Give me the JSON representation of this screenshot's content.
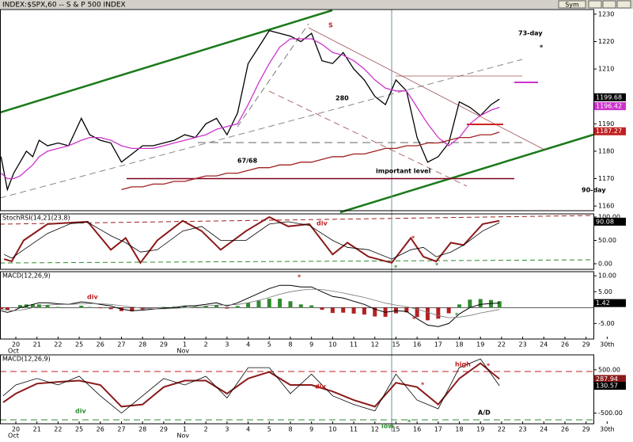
{
  "header": {
    "title": "INDEX:$SPX,60 -- S & P 500 INDEX",
    "sym": "Sym"
  },
  "chart_data": [
    {
      "type": "line",
      "xlim": [
        -0.75,
        27.35
      ],
      "ylim": [
        1158.3,
        1231.7
      ],
      "yticks": [
        1160,
        1170,
        1180,
        1190,
        1200,
        1210,
        1220,
        1230
      ],
      "x": [
        -0.7,
        -0.4,
        -0.1,
        0.2,
        0.5,
        0.8,
        1.1,
        1.5,
        2,
        2.5,
        3.1,
        3.5,
        4,
        4.5,
        5,
        5.5,
        6,
        6.5,
        7,
        7.5,
        8,
        8.5,
        9,
        9.5,
        10,
        10.5,
        11,
        11.5,
        12,
        12.5,
        13,
        13.5,
        14,
        14.5,
        15,
        15.5,
        16,
        16.5,
        17,
        17.5,
        18,
        18.5,
        19,
        19.5,
        20,
        20.5,
        21,
        21.5,
        22,
        22.5,
        22.9
      ],
      "series": [
        {
          "color": "#000000",
          "values": [
            1178,
            1166,
            1172,
            1176,
            1180,
            1178,
            1184,
            1182,
            1183,
            1182,
            1192,
            1186,
            1184,
            1183,
            1176,
            1179,
            1182,
            1182,
            1183,
            1184,
            1186,
            1185,
            1190,
            1192,
            1186,
            1194,
            1212,
            1218,
            1224,
            1223,
            1222,
            1220,
            1223,
            1213,
            1212,
            1216,
            1210,
            1206,
            1200,
            1197,
            1206,
            1202,
            1185,
            1176,
            1178,
            1183,
            1198,
            1196,
            1193,
            1197,
            1199
          ]
        },
        {
          "color": "#cc33cc",
          "values": [
            1172,
            1170,
            1170,
            1171,
            1173,
            1175,
            1178,
            1180,
            1181,
            1182,
            1184,
            1185,
            1185,
            1184,
            1182,
            1181,
            1181,
            1181,
            1182,
            1183,
            1184,
            1185,
            1186,
            1188,
            1189,
            1190,
            1197,
            1205,
            1212,
            1218,
            1221,
            1221,
            1221,
            1219,
            1216,
            1215,
            1213,
            1210,
            1206,
            1203,
            1202,
            1202,
            1196,
            1190,
            1185,
            1182,
            1185,
            1190,
            1193,
            1195,
            1196
          ]
        },
        {
          "color": "#a02020",
          "values": [
            null,
            null,
            null,
            null,
            null,
            null,
            null,
            null,
            null,
            null,
            null,
            null,
            null,
            null,
            1166,
            1167,
            1167,
            1168,
            1168,
            1169,
            1169,
            1170,
            1171,
            1171,
            1172,
            1172,
            1173,
            1174,
            1174,
            1175,
            1175,
            1176,
            1176,
            1177,
            1178,
            1178,
            1179,
            1179,
            1180,
            1181,
            1181,
            1182,
            1182,
            1183,
            1183,
            1184,
            1185,
            1185,
            1186,
            1186,
            1187
          ]
        }
      ],
      "hlines": [
        {
          "value": 1170,
          "color": "#800020"
        }
      ],
      "tags": [
        {
          "value": 1199.68,
          "color": "#000000"
        },
        {
          "value": 1196.42,
          "color": "#cc33cc"
        },
        {
          "value": 1187.27,
          "color": "#c02020"
        }
      ],
      "annotations": [
        "S",
        "280",
        "67/68",
        "important level",
        "73-day",
        "*",
        "90-day"
      ]
    },
    {
      "type": "line",
      "title": "StochRSI(14,21(23,8)",
      "xlim": [
        -0.75,
        27.35
      ],
      "ylim": [
        -11.9,
        106.8
      ],
      "yticks": [
        {
          "value": 0,
          "label": "0.00"
        },
        {
          "value": 50,
          "label": "50.00"
        },
        {
          "value": 100,
          "label": "100.00"
        }
      ],
      "x": [
        -0.56,
        -0.19,
        0.37,
        1.5,
        2.6,
        3.4,
        4.5,
        5.2,
        5.9,
        6.7,
        7.9,
        8.8,
        9.7,
        10.9,
        12,
        12.9,
        13.9,
        15,
        15.7,
        16.7,
        17.8,
        18.7,
        19.3,
        19.9,
        20.6,
        21.2,
        22.1,
        22.9
      ],
      "series": [
        {
          "color": "#8b1a1a",
          "width": 2,
          "values": [
            10,
            5,
            50,
            85,
            88,
            90,
            30,
            55,
            2,
            50,
            92,
            70,
            30,
            70,
            100,
            80,
            85,
            20,
            45,
            15,
            2,
            55,
            15,
            5,
            45,
            40,
            85,
            92
          ]
        },
        {
          "color": "#000000",
          "width": 0.8,
          "values": [
            20,
            12,
            30,
            65,
            86,
            89,
            60,
            45,
            25,
            30,
            70,
            80,
            50,
            50,
            85,
            90,
            82,
            50,
            35,
            30,
            10,
            30,
            35,
            15,
            25,
            40,
            70,
            88
          ]
        }
      ],
      "tags": [
        {
          "value": 90.08,
          "color": "#000000"
        }
      ],
      "annotations": [
        "div",
        "*",
        "*",
        "*"
      ]
    },
    {
      "type": "line",
      "title": "MACD(12,26,9)",
      "xlim": [
        -0.75,
        27.35
      ],
      "ylim": [
        -9.9,
        11.3
      ],
      "yticks": [
        {
          "value": -5,
          "label": "-5.00"
        },
        {
          "value": 5,
          "label": "5.00"
        },
        {
          "value": 10,
          "label": "10.00"
        }
      ],
      "x": [
        -0.7,
        -0.4,
        -0.1,
        0.2,
        0.5,
        0.8,
        1.1,
        1.5,
        2,
        2.5,
        3.1,
        3.5,
        4,
        4.5,
        5,
        5.5,
        6,
        6.5,
        7,
        7.5,
        8,
        8.5,
        9,
        9.5,
        10,
        10.5,
        11,
        11.5,
        12,
        12.5,
        13,
        13.5,
        14,
        14.5,
        15,
        15.5,
        16,
        16.5,
        17,
        17.5,
        18,
        18.5,
        19,
        19.5,
        20,
        20.5,
        21,
        21.5,
        22,
        22.5,
        22.9
      ],
      "histogram": {
        "up_color": "#2e8b2e",
        "down_color": "#b22222",
        "values": [
          -0.5,
          -0.7,
          0,
          0.8,
          1,
          1,
          1,
          0.7,
          0.2,
          0,
          0.6,
          0.2,
          -0.2,
          -0.5,
          -1.1,
          -1.2,
          -0.6,
          -0.1,
          0.2,
          0.3,
          0.5,
          0.4,
          0.5,
          0.7,
          -0.3,
          0.5,
          1.5,
          2.2,
          2.8,
          2.8,
          2,
          1,
          0.7,
          -0.7,
          -1.7,
          -1.6,
          -1.9,
          -2.2,
          -2.8,
          -2.9,
          -1.8,
          -1.5,
          -3,
          -4,
          -3.5,
          -1.8,
          1,
          2.5,
          2.7,
          2.4,
          2.02
        ]
      },
      "series": [
        {
          "color": "#000000",
          "width": 1,
          "values": [
            -1,
            -1.5,
            -1,
            0,
            0.5,
            1,
            1.5,
            1.5,
            1.2,
            1,
            1.8,
            1.5,
            1,
            0.5,
            -0.5,
            -1,
            -0.8,
            -0.5,
            -0.2,
            0,
            0.5,
            0.6,
            1,
            1.5,
            0.5,
            1.5,
            3,
            4.5,
            6,
            7,
            7,
            6.5,
            6.5,
            5,
            3.5,
            3,
            2,
            1,
            -0.5,
            -1.5,
            -1,
            -1.2,
            -3.5,
            -5.5,
            -6,
            -5,
            -2,
            0,
            1,
            1.3,
            1.42
          ]
        },
        {
          "color": "#777777",
          "width": 0.8,
          "values": [
            -0.5,
            -0.8,
            -1,
            -0.8,
            -0.5,
            0,
            0.5,
            0.8,
            1,
            1,
            1.2,
            1.3,
            1.2,
            1,
            0.6,
            0.2,
            -0.2,
            -0.4,
            -0.4,
            -0.3,
            0,
            0.2,
            0.5,
            0.8,
            0.8,
            1,
            1.5,
            2.3,
            3.2,
            4.2,
            5,
            5.5,
            5.8,
            5.7,
            5.2,
            4.6,
            3.9,
            3.2,
            2.3,
            1.4,
            0.8,
            0.3,
            -0.5,
            -1.5,
            -2.5,
            -3.2,
            -3,
            -2.5,
            -1.7,
            -1.1,
            -0.6
          ]
        }
      ],
      "tags": [
        {
          "value": 1.42,
          "color": "#000000"
        }
      ],
      "xticks": [
        {
          "value": 0,
          "label": "20"
        },
        {
          "value": 1,
          "label": "21"
        },
        {
          "value": 2,
          "label": "22"
        },
        {
          "value": 3,
          "label": "25"
        },
        {
          "value": 4,
          "label": "26"
        },
        {
          "value": 5,
          "label": "27"
        },
        {
          "value": 6,
          "label": "28"
        },
        {
          "value": 7,
          "label": "29"
        },
        {
          "value": 8,
          "label": "1"
        },
        {
          "value": 9,
          "label": "2"
        },
        {
          "value": 10,
          "label": "3"
        },
        {
          "value": 11,
          "label": "4"
        },
        {
          "value": 12,
          "label": "5"
        },
        {
          "value": 13,
          "label": "8"
        },
        {
          "value": 14,
          "label": "9"
        },
        {
          "value": 15,
          "label": "10"
        },
        {
          "value": 16,
          "label": "11"
        },
        {
          "value": 17,
          "label": "12"
        },
        {
          "value": 18,
          "label": "15"
        },
        {
          "value": 19,
          "label": "16"
        },
        {
          "value": 20,
          "label": "17"
        },
        {
          "value": 21,
          "label": "18"
        },
        {
          "value": 22,
          "label": "19"
        },
        {
          "value": 23,
          "label": "22"
        },
        {
          "value": 24,
          "label": "23"
        },
        {
          "value": 25,
          "label": "24"
        },
        {
          "value": 26,
          "label": "26"
        },
        {
          "value": 27,
          "label": "29"
        },
        {
          "value": 28,
          "label": "30th"
        }
      ],
      "month_labels": [
        {
          "value": 0,
          "label": "Oct"
        },
        {
          "value": 8,
          "label": "Nov"
        }
      ],
      "annotations": [
        "div",
        "*",
        "*",
        "*"
      ]
    },
    {
      "type": "line",
      "title": "MACD(12,26,9)",
      "xlim": [
        -0.75,
        27.35
      ],
      "ylim": [
        -746,
        844
      ],
      "yticks": [
        {
          "value": -500,
          "label": "-500.00"
        },
        {
          "value": 500,
          "label": "500.00"
        }
      ],
      "x": [
        -0.6,
        0,
        1,
        2,
        3,
        4,
        5,
        6,
        7,
        8,
        9,
        10,
        11,
        12,
        13,
        14,
        15,
        16,
        17,
        18,
        19,
        20,
        21,
        22,
        22.9
      ],
      "series": [
        {
          "color": "#8b1a1a",
          "width": 2,
          "values": [
            -250,
            -50,
            180,
            220,
            250,
            150,
            -350,
            -300,
            100,
            250,
            250,
            -50,
            300,
            450,
            150,
            150,
            0,
            -200,
            -350,
            200,
            100,
            -300,
            300,
            650,
            287.94
          ]
        },
        {
          "color": "#000000",
          "width": 0.8,
          "values": [
            -100,
            150,
            300,
            150,
            350,
            -100,
            -500,
            -100,
            300,
            150,
            350,
            -150,
            550,
            550,
            -50,
            400,
            -100,
            -300,
            -450,
            400,
            -200,
            -400,
            550,
            750,
            130.57
          ]
        }
      ],
      "tags": [
        {
          "value": 287.94,
          "color": "#8b1a1a"
        },
        {
          "value": 130.57,
          "color": "#000000"
        }
      ],
      "xticks": [
        {
          "value": 0,
          "label": "20"
        },
        {
          "value": 1,
          "label": "21"
        },
        {
          "value": 2,
          "label": "22"
        },
        {
          "value": 3,
          "label": "25"
        },
        {
          "value": 4,
          "label": "26"
        },
        {
          "value": 5,
          "label": "27"
        },
        {
          "value": 6,
          "label": "28"
        },
        {
          "value": 7,
          "label": "29"
        },
        {
          "value": 8,
          "label": "1"
        },
        {
          "value": 9,
          "label": "2"
        },
        {
          "value": 10,
          "label": "3"
        },
        {
          "value": 11,
          "label": "4"
        },
        {
          "value": 12,
          "label": "5"
        },
        {
          "value": 13,
          "label": "8"
        },
        {
          "value": 14,
          "label": "9"
        },
        {
          "value": 15,
          "label": "10"
        },
        {
          "value": 16,
          "label": "11"
        },
        {
          "value": 17,
          "label": "12"
        },
        {
          "value": 18,
          "label": "15"
        },
        {
          "value": 19,
          "label": "16"
        },
        {
          "value": 20,
          "label": "17"
        },
        {
          "value": 21,
          "label": "18"
        },
        {
          "value": 22,
          "label": "19"
        },
        {
          "value": 23,
          "label": "22"
        },
        {
          "value": 24,
          "label": "23"
        },
        {
          "value": 25,
          "label": "24"
        },
        {
          "value": 26,
          "label": "26"
        },
        {
          "value": 27,
          "label": "29"
        },
        {
          "value": 28,
          "label": "30th"
        }
      ],
      "month_labels": [
        {
          "value": 0,
          "label": "Oct"
        },
        {
          "value": 8,
          "label": "Nov"
        }
      ],
      "annotations": [
        "high",
        "*",
        "div",
        "div",
        "low",
        "*",
        "*",
        "A/D"
      ]
    }
  ]
}
